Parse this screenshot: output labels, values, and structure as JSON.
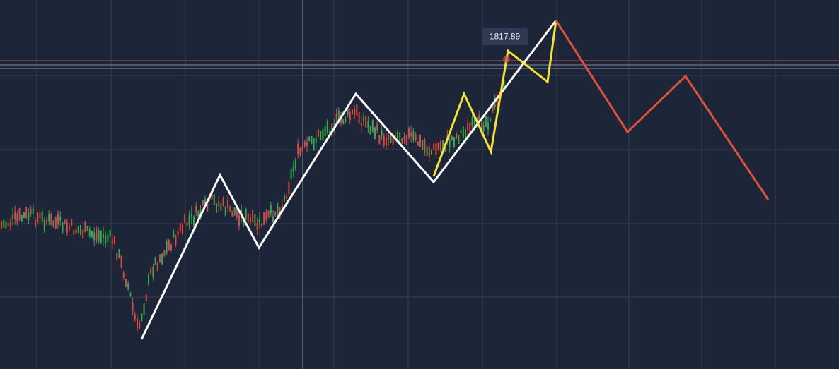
{
  "price_label": "1817.89"
}
